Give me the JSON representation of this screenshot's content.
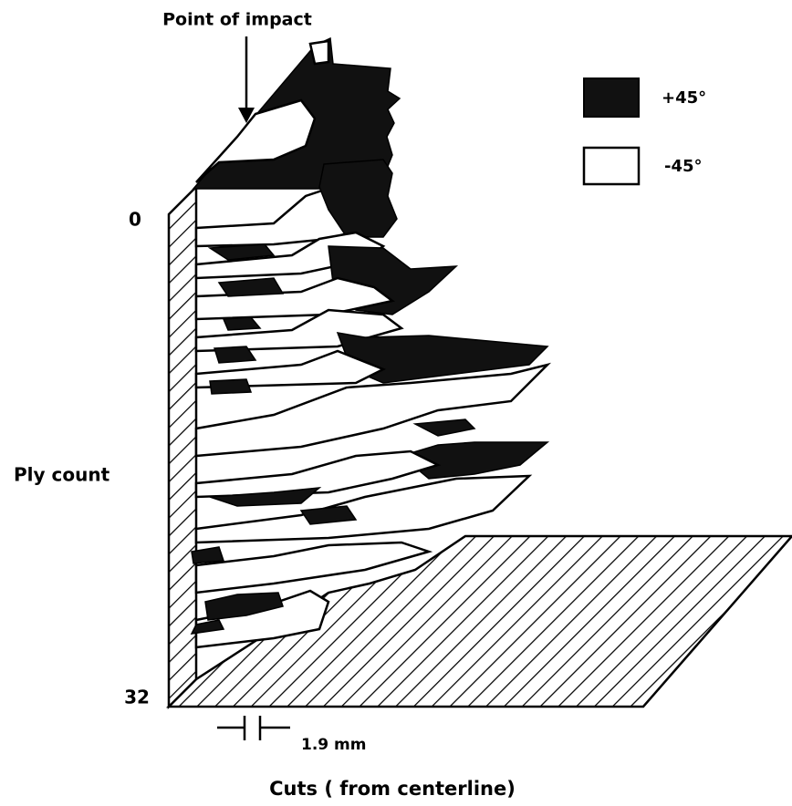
{
  "title": "Point of impact",
  "legend": {
    "items": [
      {
        "label": "+45°"
      },
      {
        "label": "-45°"
      }
    ]
  },
  "axis": {
    "top_label": "0",
    "bottom_label": "32",
    "y_title": "Ply count",
    "x_title": "Cuts ( from centerline)",
    "scale_label": "1.9 mm"
  }
}
